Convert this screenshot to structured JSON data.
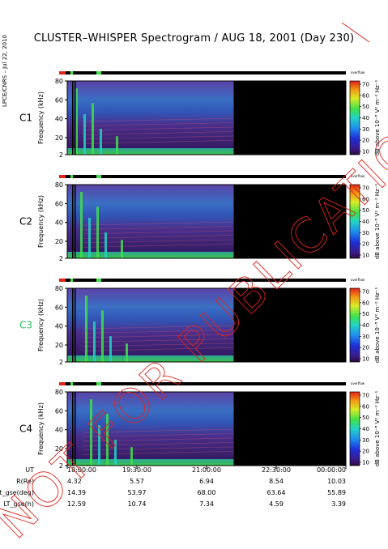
{
  "title": "CLUSTER–WHISPER Spectrogram / AUG 18, 2001 (Day 230)",
  "credit": "LPCE/CNRS – Jul 22, 2010",
  "stamp": "NOT FOR PUBLICATION",
  "colors": {
    "stamp": "#e0241b",
    "c3_label": "#2ec25a",
    "no_data": "#000000"
  },
  "chart_data": {
    "type": "heatmap",
    "ylabel": "Frequency (kHz)",
    "yticks": [
      "80",
      "60",
      "40",
      "20",
      "2"
    ],
    "ylim": [
      2,
      80
    ],
    "colorbar": {
      "label": "dB above 10⁻⁸ V² m⁻² Hz⁻¹",
      "ticks": [
        "70",
        "60",
        "50",
        "40",
        "30",
        "20",
        "10"
      ],
      "range": [
        10,
        70
      ],
      "small_label": "overflow"
    },
    "time_range": [
      "18:00:00",
      "00:00:00"
    ],
    "data_end": "21:35",
    "panels": [
      {
        "label": "C1",
        "label_color": "#000000"
      },
      {
        "label": "C2",
        "label_color": "#000000"
      },
      {
        "label": "C3",
        "label_color": "#2ec25a"
      },
      {
        "label": "C4",
        "label_color": "#000000"
      }
    ]
  },
  "ephemeris": {
    "rows": [
      {
        "label": "UT",
        "values": [
          "18:00:00",
          "19:30:00",
          "21:00:00",
          "22:30:00",
          "00:00:00"
        ]
      },
      {
        "label": "R(Re)",
        "values": [
          "4.32",
          "5.57",
          "6.94",
          "8.54",
          "10.03"
        ]
      },
      {
        "label": "Lat_gse(deg)",
        "values": [
          "14.39",
          "53.97",
          "68.00",
          "63.64",
          "55.89"
        ]
      },
      {
        "label": "LT_gse(h)",
        "values": [
          "12.59",
          "10.74",
          "7.34",
          "4.59",
          "3.39"
        ]
      }
    ]
  }
}
